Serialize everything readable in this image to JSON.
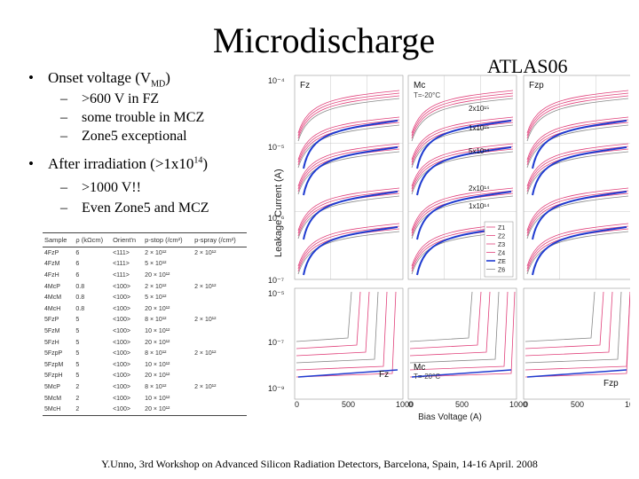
{
  "title": "Microdischarge",
  "conference_tag": "ATLAS06",
  "bullets": [
    {
      "text": "Onset voltage (V",
      "subscript": "MD",
      "text_after": ")",
      "sub_items": [
        ">600 V in FZ",
        "some trouble in MCZ",
        "Zone5 exceptional"
      ]
    },
    {
      "text": "After irradiation (>1x10",
      "superscript": "14",
      "text_after": ")",
      "sub_items": [
        ">1000 V!!",
        "Even Zone5 and MCZ"
      ]
    }
  ],
  "table": {
    "headers": [
      "Sample",
      "ρ (kΩcm)",
      "Orient'n",
      "p-stop (/cm²)",
      "p-spray (/cm²)"
    ],
    "rows": [
      [
        "4FzP",
        "6",
        "<111>",
        "2 × 10¹²",
        "2 × 10¹²"
      ],
      [
        "4FzM",
        "6",
        "<111>",
        "5 × 10¹²",
        ""
      ],
      [
        "4FzH",
        "6",
        "<111>",
        "20 × 10¹²",
        ""
      ],
      [
        "4McP",
        "0.8",
        "<100>",
        "2 × 10¹²",
        "2 × 10¹²"
      ],
      [
        "4McM",
        "0.8",
        "<100>",
        "5 × 10¹²",
        ""
      ],
      [
        "4McH",
        "0.8",
        "<100>",
        "20 × 10¹²",
        ""
      ],
      [
        "5FzP",
        "5",
        "<100>",
        "8 × 10¹²",
        "2 × 10¹²"
      ],
      [
        "5FzM",
        "5",
        "<100>",
        "10 × 10¹²",
        ""
      ],
      [
        "5FzH",
        "5",
        "<100>",
        "20 × 10¹²",
        ""
      ],
      [
        "5FzpP",
        "5",
        "<100>",
        "8 × 10¹²",
        "2 × 10¹²"
      ],
      [
        "5FzpM",
        "5",
        "<100>",
        "10 × 10¹²",
        ""
      ],
      [
        "5FzpH",
        "5",
        "<100>",
        "20 × 10¹²",
        ""
      ],
      [
        "5McP",
        "2",
        "<100>",
        "8 × 10¹²",
        "2 × 10¹²"
      ],
      [
        "5McM",
        "2",
        "<100>",
        "10 × 10¹²",
        ""
      ],
      [
        "5McH",
        "2",
        "<100>",
        "20 × 10¹²",
        ""
      ]
    ]
  },
  "plots": {
    "ylabel": "Leakage Current (A)",
    "xlabel": "Bias Voltage (A)",
    "top_yticks": [
      "10⁻⁴",
      "10⁻⁵",
      "10⁻⁶",
      "10⁻⁷"
    ],
    "bottom_yticks": [
      "10⁻⁵",
      "10⁻⁷",
      "10⁻⁹"
    ],
    "xticks": [
      "0",
      "500",
      "1000"
    ],
    "panels": [
      {
        "label": "Fz",
        "sublabel": ""
      },
      {
        "label": "Mc",
        "sublabel": "T=-20°C"
      },
      {
        "label": "Fzp",
        "sublabel": ""
      }
    ],
    "fluence_labels": [
      "2x10¹⁵",
      "1x10¹⁵",
      "5x10¹⁴",
      "2x10¹⁴",
      "1x10¹⁴"
    ],
    "legend": [
      "Z1",
      "Z2",
      "Z3",
      "Z4",
      "ZE",
      "Z6"
    ],
    "colors": {
      "pink": "#e0407a",
      "blue": "#1f3bd0",
      "gray": "#888888",
      "grid": "#bbbbbb"
    }
  },
  "footer": "Y.Unno, 3rd Workshop on Advanced Silicon Radiation Detectors, Barcelona, Spain, 14-16 April. 2008"
}
